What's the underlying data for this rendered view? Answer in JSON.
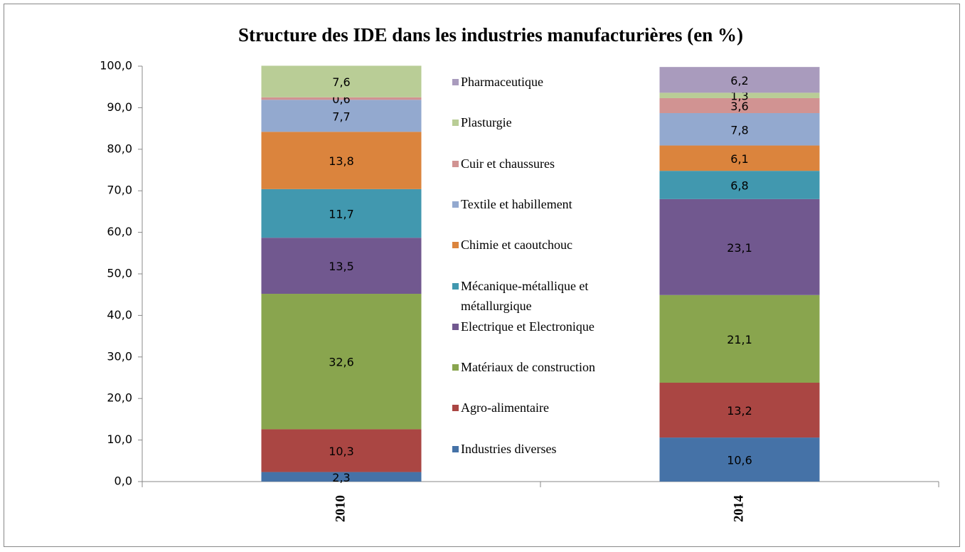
{
  "chart_data": {
    "type": "stacked_bar",
    "title": "Structure des IDE dans les industries manufacturières (en %)",
    "categories": [
      "2010",
      "2014"
    ],
    "ylim": [
      0,
      100
    ],
    "yticks": [
      {
        "value": 0,
        "label": "0,0"
      },
      {
        "value": 10,
        "label": "10,0"
      },
      {
        "value": 20,
        "label": "20,0"
      },
      {
        "value": 30,
        "label": "30,0"
      },
      {
        "value": 40,
        "label": "40,0"
      },
      {
        "value": 50,
        "label": "50,0"
      },
      {
        "value": 60,
        "label": "60,0"
      },
      {
        "value": 70,
        "label": "70,0"
      },
      {
        "value": 80,
        "label": "80,0"
      },
      {
        "value": 90,
        "label": "90,0"
      },
      {
        "value": 100,
        "label": "100,0"
      }
    ],
    "legend": "right",
    "series": [
      {
        "name": "Industries diverses",
        "color": "#4572a7",
        "values": [
          2.3,
          10.6
        ],
        "value_labels": [
          "2,3",
          "10,6"
        ]
      },
      {
        "name": "Agro-alimentaire",
        "color": "#aa4643",
        "values": [
          10.3,
          13.2
        ],
        "value_labels": [
          "10,3",
          "13,2"
        ]
      },
      {
        "name": "Matériaux de construction",
        "color": "#89a54e",
        "values": [
          32.6,
          21.1
        ],
        "value_labels": [
          "32,6",
          "21,1"
        ]
      },
      {
        "name": "Electrique et Electronique",
        "color": "#71588f",
        "values": [
          13.5,
          23.1
        ],
        "value_labels": [
          "13,5",
          "23,1"
        ]
      },
      {
        "name": "Mécanique-métallique et métallurgique",
        "color": "#4198af",
        "values": [
          11.7,
          6.8
        ],
        "value_labels": [
          "11,7",
          "6,8"
        ]
      },
      {
        "name": "Chimie et caoutchouc",
        "color": "#db843d",
        "values": [
          13.8,
          6.1
        ],
        "value_labels": [
          "13,8",
          "6,1"
        ]
      },
      {
        "name": "Textile et habillement",
        "color": "#93a9cf",
        "values": [
          7.7,
          7.8
        ],
        "value_labels": [
          "7,7",
          "7,8"
        ]
      },
      {
        "name": "Cuir et chaussures",
        "color": "#d19392",
        "values": [
          0.6,
          3.6
        ],
        "value_labels": [
          "0,6",
          "3,6"
        ]
      },
      {
        "name": "Plasturgie",
        "color": "#b9cd96",
        "values": [
          7.6,
          1.3
        ],
        "value_labels": [
          "7,6",
          "1,3"
        ]
      },
      {
        "name": "Pharmaceutique",
        "color": "#a99bbd",
        "values": [
          null,
          6.2
        ],
        "value_labels": [
          null,
          "6,2"
        ]
      }
    ]
  }
}
